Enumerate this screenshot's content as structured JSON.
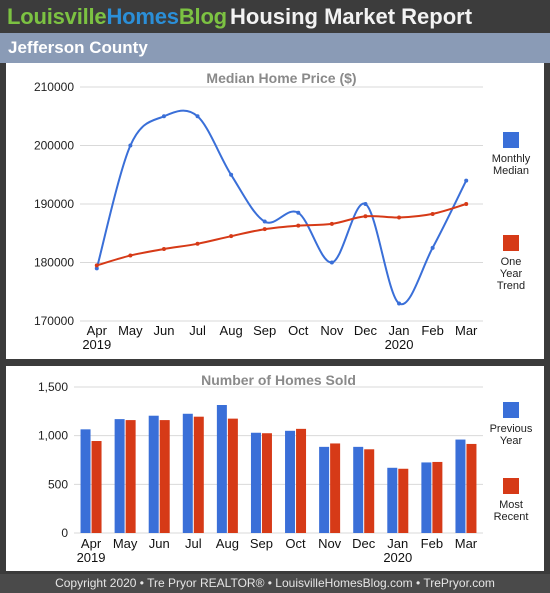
{
  "header": {
    "brand_part1": "Louisville",
    "brand_part2": "Homes",
    "brand_part3": "Blog",
    "title": "Housing Market Report",
    "county": "Jefferson County"
  },
  "footer": {
    "text": "Copyright 2020 • Tre Pryor REALTOR® • LouisvilleHomesBlog.com • TrePryor.com"
  },
  "colors": {
    "blue": "#3a6fd8",
    "red": "#d63a17",
    "grid": "#d9d9d9",
    "title_gray": "#8a8a8a"
  },
  "chart_data": [
    {
      "type": "line",
      "title": "Median Home Price ($)",
      "categories": [
        "Apr",
        "May",
        "Jun",
        "Jul",
        "Aug",
        "Sep",
        "Oct",
        "Nov",
        "Dec",
        "Jan",
        "Feb",
        "Mar"
      ],
      "year_labels": [
        {
          "index": 0,
          "label": "2019"
        },
        {
          "index": 9,
          "label": "2020"
        }
      ],
      "ylim": [
        170000,
        210000
      ],
      "yticks": [
        170000,
        180000,
        190000,
        200000,
        210000
      ],
      "ytick_labels": [
        "170000",
        "180000",
        "190000",
        "200000",
        "210000"
      ],
      "grid": true,
      "legend_position": "right",
      "series": [
        {
          "name": "Monthly Median",
          "legend_lines": [
            "Monthly",
            "Median"
          ],
          "color": "#3a6fd8",
          "smooth": true,
          "values": [
            179000,
            200000,
            205000,
            205000,
            195000,
            187000,
            188500,
            180000,
            190000,
            173000,
            182500,
            194000
          ]
        },
        {
          "name": "One Year Trend",
          "legend_lines": [
            "One",
            "Year",
            "Trend"
          ],
          "color": "#d63a17",
          "smooth": true,
          "values": [
            179500,
            181200,
            182300,
            183200,
            184500,
            185700,
            186300,
            186600,
            187900,
            187700,
            188300,
            190000
          ]
        }
      ]
    },
    {
      "type": "bar",
      "title": "Number of Homes Sold",
      "categories": [
        "Apr",
        "May",
        "Jun",
        "Jul",
        "Aug",
        "Sep",
        "Oct",
        "Nov",
        "Dec",
        "Jan",
        "Feb",
        "Mar"
      ],
      "year_labels": [
        {
          "index": 0,
          "label": "2019"
        },
        {
          "index": 9,
          "label": "2020"
        }
      ],
      "ylim": [
        0,
        1500
      ],
      "yticks": [
        0,
        500,
        1000,
        1500
      ],
      "ytick_labels": [
        "0",
        "500",
        "1,000",
        "1,500"
      ],
      "grid": true,
      "legend_position": "right",
      "series": [
        {
          "name": "Previous Year",
          "legend_lines": [
            "Previous",
            "Year"
          ],
          "color": "#3a6fd8",
          "values": [
            1065,
            1170,
            1205,
            1225,
            1315,
            1030,
            1050,
            885,
            885,
            670,
            725,
            960
          ]
        },
        {
          "name": "Most Recent",
          "legend_lines": [
            "Most",
            "Recent"
          ],
          "color": "#d63a17",
          "values": [
            945,
            1160,
            1160,
            1195,
            1175,
            1025,
            1070,
            920,
            860,
            660,
            730,
            915
          ]
        }
      ]
    }
  ]
}
